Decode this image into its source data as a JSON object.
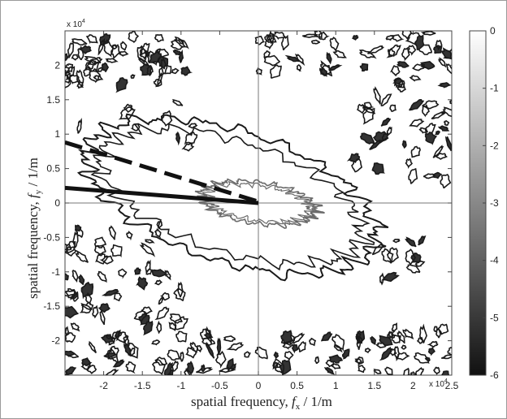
{
  "chart_data": {
    "type": "contour",
    "xlabel_prefix": "spatial frequency, ",
    "xlabel_var": "f",
    "xlabel_sub": "x",
    "xlabel_unit": "  / 1/m",
    "ylabel_prefix": "spatial frequency, ",
    "ylabel_var": "f",
    "ylabel_sub": "y",
    "ylabel_unit": "  / 1/m",
    "x_multiplier": "x 10",
    "x_multiplier_exp": "4",
    "y_multiplier": "x 10",
    "y_multiplier_exp": "4",
    "xlim": [
      -2.5,
      2.5
    ],
    "ylim": [
      -2.5,
      2.5
    ],
    "x_ticks": [
      "-2",
      "-1.5",
      "-1",
      "-0.5",
      "0",
      "0.5",
      "1",
      "1.5",
      "2",
      "2.5"
    ],
    "x_tick_values": [
      -2,
      -1.5,
      -1,
      -0.5,
      0,
      0.5,
      1,
      1.5,
      2,
      2.5
    ],
    "y_ticks": [
      "2",
      "1.5",
      "1",
      "0.5",
      "0",
      "-0.5",
      "-1",
      "-1.5",
      "-2"
    ],
    "y_tick_values": [
      2,
      1.5,
      1,
      0.5,
      0,
      -0.5,
      -1,
      -1.5,
      -2
    ],
    "colorbar": {
      "ticks": [
        "0",
        "-1",
        "-2",
        "-3",
        "-4",
        "-5",
        "-6"
      ],
      "tick_values": [
        0,
        -1,
        -2,
        -3,
        -4,
        -5,
        -6
      ],
      "range": [
        -6,
        0
      ],
      "colors": [
        "#111111",
        "#ffffff"
      ]
    },
    "contours": [
      {
        "level": -6,
        "shape": "ellipse",
        "center": [
          -0.35,
          0.1
        ],
        "semi_axes": [
          1.95,
          0.95
        ],
        "rotation_deg": -18,
        "color": "#1a1a1a"
      },
      {
        "level": -3,
        "shape": "ellipse",
        "center": [
          0.0,
          0.0
        ],
        "semi_axes": [
          0.75,
          0.3
        ],
        "rotation_deg": -8,
        "color": "#6a6a6a"
      }
    ],
    "lines": [
      {
        "style": "solid",
        "from": [
          -2.5,
          0.22
        ],
        "to": [
          0.0,
          0.0
        ],
        "color": "#111111"
      },
      {
        "style": "dashed",
        "from": [
          -2.5,
          0.88
        ],
        "to": [
          0.0,
          0.02
        ],
        "color": "#111111"
      }
    ],
    "reference_lines": {
      "x": 0,
      "y": 0
    }
  }
}
